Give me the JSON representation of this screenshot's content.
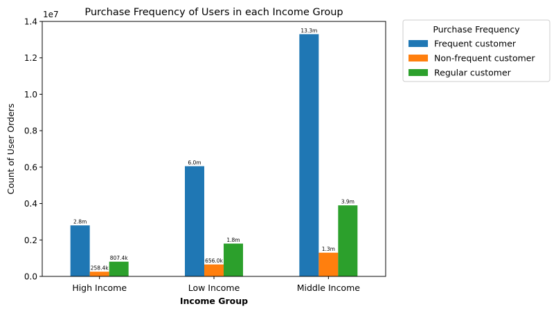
{
  "chart_data": {
    "type": "bar",
    "title": "Purchase Frequency of Users in each Income Group",
    "xlabel": "Income Group",
    "ylabel": "Count of User Orders",
    "y_offset_label": "1e7",
    "ylim": [
      0,
      1.4
    ],
    "y_ticks": [
      "0.0",
      "0.2",
      "0.4",
      "0.6",
      "0.8",
      "1.0",
      "1.2",
      "1.4"
    ],
    "categories": [
      "High Income",
      "Low Income",
      "Middle Income"
    ],
    "legend_title": "Purchase Frequency",
    "legend_position": "outside-top-right",
    "series": [
      {
        "name": "Frequent customer",
        "color": "#1f77b4",
        "values": [
          0.28,
          0.605,
          1.33
        ],
        "labels": [
          "2.8m",
          "6.0m",
          "13.3m"
        ]
      },
      {
        "name": "Non-frequent customer",
        "color": "#ff7f0e",
        "values": [
          0.02584,
          0.0656,
          0.13
        ],
        "labels": [
          "258.4k",
          "656.0k",
          "1.3m"
        ]
      },
      {
        "name": "Regular customer",
        "color": "#2ca02c",
        "values": [
          0.08074,
          0.18,
          0.39
        ],
        "labels": [
          "807.4k",
          "1.8m",
          "3.9m"
        ]
      }
    ]
  }
}
